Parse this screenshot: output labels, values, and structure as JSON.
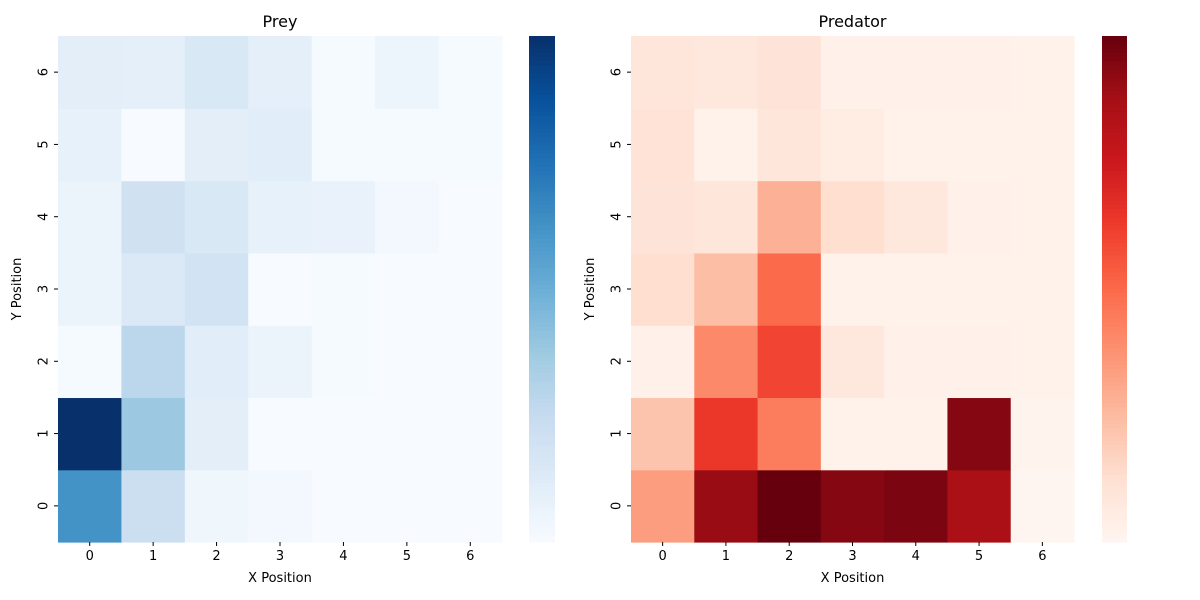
{
  "chart_data": [
    {
      "type": "heatmap",
      "title": "Prey",
      "xlabel": "X Position",
      "ylabel": "Y Position",
      "x_ticks": [
        "0",
        "1",
        "2",
        "3",
        "4",
        "5",
        "6"
      ],
      "y_ticks": [
        "0",
        "1",
        "2",
        "3",
        "4",
        "5",
        "6"
      ],
      "y_order": "0 at bottom",
      "colormap": "Blues",
      "colorbar": true,
      "colorbar_tick_labels": [],
      "value_range": [
        0,
        1
      ],
      "values": [
        [
          0.62,
          0.22,
          0.04,
          0.02,
          0.0,
          0.0,
          0.0
        ],
        [
          1.0,
          0.38,
          0.1,
          0.0,
          0.0,
          0.0,
          0.0
        ],
        [
          0.01,
          0.28,
          0.11,
          0.06,
          0.01,
          0.0,
          0.0
        ],
        [
          0.06,
          0.14,
          0.19,
          0.0,
          0.01,
          0.0,
          0.0
        ],
        [
          0.06,
          0.2,
          0.15,
          0.08,
          0.07,
          0.02,
          0.0
        ],
        [
          0.08,
          0.0,
          0.1,
          0.11,
          0.01,
          0.01,
          0.01
        ],
        [
          0.1,
          0.09,
          0.15,
          0.09,
          0.01,
          0.05,
          0.01
        ]
      ]
    },
    {
      "type": "heatmap",
      "title": "Predator",
      "xlabel": "X Position",
      "ylabel": "Y Position",
      "x_ticks": [
        "0",
        "1",
        "2",
        "3",
        "4",
        "5",
        "6"
      ],
      "y_ticks": [
        "0",
        "1",
        "2",
        "3",
        "4",
        "5",
        "6"
      ],
      "y_order": "0 at bottom",
      "colormap": "Reds",
      "colorbar": true,
      "colorbar_tick_labels": [],
      "value_range": [
        0,
        1
      ],
      "values": [
        [
          0.34,
          0.9,
          1.0,
          0.94,
          0.96,
          0.86,
          0.0
        ],
        [
          0.22,
          0.64,
          0.44,
          0.02,
          0.02,
          0.94,
          0.01
        ],
        [
          0.03,
          0.4,
          0.6,
          0.08,
          0.03,
          0.03,
          0.02
        ],
        [
          0.13,
          0.24,
          0.5,
          0.02,
          0.02,
          0.02,
          0.02
        ],
        [
          0.1,
          0.09,
          0.28,
          0.13,
          0.08,
          0.03,
          0.02
        ],
        [
          0.11,
          0.02,
          0.09,
          0.05,
          0.02,
          0.02,
          0.02
        ],
        [
          0.09,
          0.08,
          0.1,
          0.03,
          0.03,
          0.03,
          0.02
        ]
      ]
    }
  ]
}
